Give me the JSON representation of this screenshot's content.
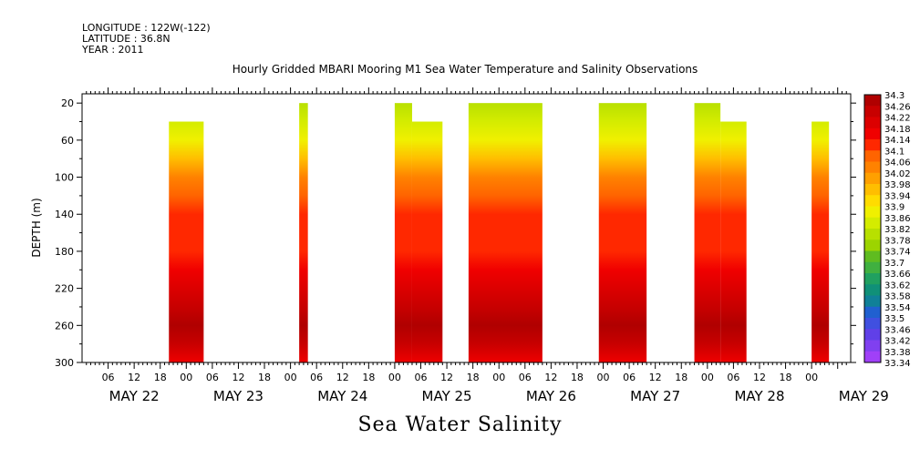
{
  "header": {
    "longitude": "LONGITUDE : 122W(-122)",
    "latitude": "LATITUDE : 36.8N",
    "year": "YEAR : 2011"
  },
  "colors": {
    "palette": [
      "#a00000",
      "#b00000",
      "#c80000",
      "#dc0000",
      "#f00000",
      "#ff2800",
      "#ff4600",
      "#ff6400",
      "#ff8200",
      "#ffa000",
      "#ffbe00",
      "#ffdc00",
      "#fff000",
      "#f0f000",
      "#d4ec00",
      "#b8e000",
      "#9cd400",
      "#80c800",
      "#5fbc20",
      "#40b040",
      "#20a060",
      "#109078",
      "#108098",
      "#1070b0",
      "#2060d0",
      "#4050e0",
      "#6040e8",
      "#8040f0",
      "#a040f8",
      "#c050ff"
    ]
  },
  "chart_data": {
    "type": "heatmap",
    "title": "Hourly Gridded MBARI Mooring M1 Sea Water Temperature and Salinity Observations",
    "bottom_title": "Sea Water Salinity",
    "ylabel": "DEPTH (m)",
    "y_reversed": true,
    "ylim": [
      10,
      300
    ],
    "y_ticks": [
      20,
      60,
      100,
      140,
      180,
      220,
      260,
      300
    ],
    "xlim_hours": [
      0,
      177
    ],
    "x_hour_ticks": [
      "06",
      "12",
      "18",
      "00",
      "06",
      "12",
      "18",
      "00",
      "06",
      "12",
      "18",
      "00",
      "06",
      "12",
      "18",
      "00",
      "06",
      "12",
      "18",
      "00",
      "06",
      "12",
      "18",
      "00",
      "06",
      "12",
      "18",
      "00"
    ],
    "x_date_labels": [
      "MAY 22",
      "MAY 23",
      "MAY 24",
      "MAY 25",
      "MAY 26",
      "MAY 27",
      "MAY 28",
      "MAY 29"
    ],
    "colorbar_levels": [
      "34.3",
      "34.26",
      "34.22",
      "34.18",
      "34.14",
      "34.1",
      "34.06",
      "34.02",
      "33.98",
      "33.94",
      "33.9",
      "33.86",
      "33.82",
      "33.78",
      "33.74",
      "33.7",
      "33.66",
      "33.62",
      "33.58",
      "33.54",
      "33.5",
      "33.46",
      "33.42",
      "33.38",
      "33.34"
    ],
    "profile": {
      "depth": [
        20,
        40,
        60,
        80,
        100,
        120,
        140,
        160,
        180,
        200,
        220,
        240,
        260,
        280,
        300
      ],
      "salinity": [
        33.8,
        33.83,
        33.88,
        33.96,
        34.02,
        34.08,
        34.12,
        34.13,
        34.13,
        34.16,
        34.19,
        34.24,
        34.27,
        34.22,
        34.18
      ]
    },
    "segments": [
      {
        "start": 20,
        "end": 28,
        "top_depth": 40
      },
      {
        "start": 50,
        "end": 52,
        "top_depth": 20
      },
      {
        "start": 72,
        "end": 76,
        "top_depth": 20
      },
      {
        "start": 76,
        "end": 83,
        "top_depth": 40
      },
      {
        "start": 89,
        "end": 106,
        "top_depth": 20
      },
      {
        "start": 119,
        "end": 130,
        "top_depth": 20
      },
      {
        "start": 141,
        "end": 147,
        "top_depth": 20
      },
      {
        "start": 147,
        "end": 153,
        "top_depth": 40
      },
      {
        "start": 168,
        "end": 172,
        "top_depth": 40
      }
    ]
  }
}
